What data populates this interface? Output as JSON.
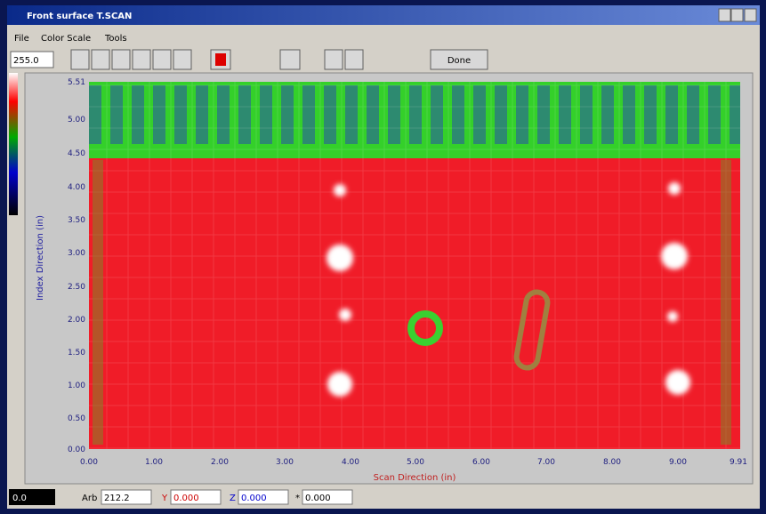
{
  "window": {
    "title": "Front surface T.SCAN"
  },
  "menu": [
    "File",
    "Color Scale",
    "Tools"
  ],
  "toolbar": {
    "input": "255.0",
    "done": "Done"
  },
  "plot": {
    "yticks": [
      "5.51",
      "5.00",
      "4.50",
      "4.00",
      "3.50",
      "3.00",
      "2.50",
      "2.00",
      "1.50",
      "1.00",
      "0.50",
      "0.00"
    ],
    "xticks": [
      "0.00",
      "1.00",
      "2.00",
      "3.00",
      "4.00",
      "5.00",
      "6.00",
      "7.00",
      "8.00",
      "9.00",
      "9.91"
    ],
    "ylabel": "Index Direction (in)",
    "xlabel": "Scan Direction (in)"
  },
  "status": {
    "left": "0.0",
    "arb_label": "Arb",
    "arb": "212.2",
    "y_label": "Y",
    "y": "0.000",
    "z_label": "Z",
    "z": "0.000",
    "w_label": "*",
    "w": "0.000"
  }
}
